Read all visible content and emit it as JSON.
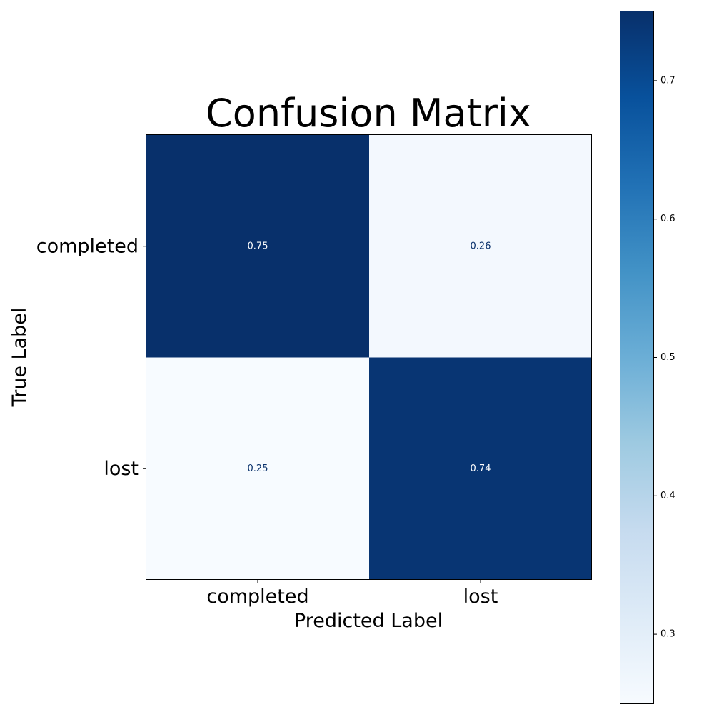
{
  "chart_data": {
    "type": "heatmap",
    "title": "Confusion Matrix",
    "xlabel": "Predicted Label",
    "ylabel": "True Label",
    "x_categories": [
      "completed",
      "lost"
    ],
    "y_categories": [
      "completed",
      "lost"
    ],
    "values": [
      [
        0.75,
        0.26
      ],
      [
        0.25,
        0.74
      ]
    ],
    "value_labels": [
      [
        "0.75",
        "0.26"
      ],
      [
        "0.25",
        "0.74"
      ]
    ],
    "colorbar": {
      "range": [
        0.25,
        0.75
      ],
      "ticks": [
        0.3,
        0.4,
        0.5,
        0.6,
        0.7
      ],
      "tick_labels": [
        "0.3",
        "0.4",
        "0.5",
        "0.6",
        "0.7"
      ],
      "colormap": "Blues"
    },
    "grid": false
  }
}
